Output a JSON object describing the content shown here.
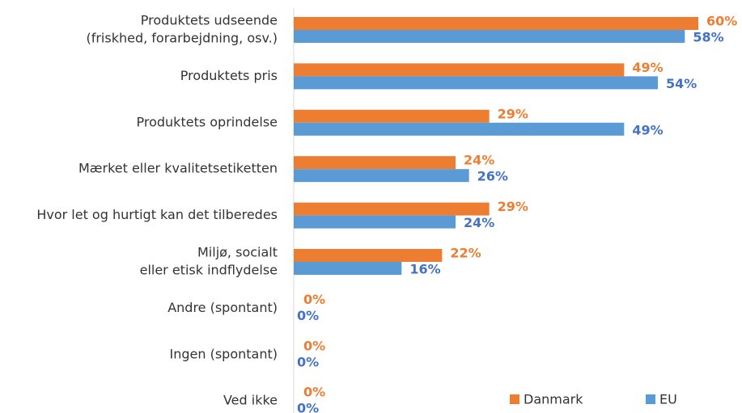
{
  "chart_data": {
    "type": "hbar",
    "categories": [
      [
        "Produktets udseende",
        "(friskhed, forarbejdning, osv.)"
      ],
      [
        "Produktets pris"
      ],
      [
        "Produktets oprindelse"
      ],
      [
        "Mærket eller kvalitetsetiketten"
      ],
      [
        "Hvor let og hurtigt kan det tilberedes"
      ],
      [
        "Miljø, socialt",
        "eller etisk indflydelse"
      ],
      [
        "Andre (spontant)"
      ],
      [
        "Ingen (spontant)"
      ],
      [
        "Ved ikke"
      ]
    ],
    "series": [
      {
        "name": "Danmark",
        "color": "#ed7d31",
        "label_color": "#ed7d31",
        "values": [
          60,
          49,
          29,
          24,
          29,
          22,
          0,
          0,
          0
        ],
        "value_labels": [
          "60%",
          "49%",
          "29%",
          "24%",
          "29%",
          "22%",
          "0%",
          "0%",
          "0%"
        ]
      },
      {
        "name": "EU",
        "color": "#5b9bd5",
        "label_color": "#4472c4",
        "values": [
          58,
          54,
          49,
          26,
          24,
          16,
          0,
          0,
          0
        ],
        "value_labels": [
          "58%",
          "54%",
          "49%",
          "26%",
          "24%",
          "16%",
          "0%",
          "0%",
          "0%"
        ]
      }
    ],
    "xlim": [
      0,
      60
    ],
    "legend": "bottom-right"
  }
}
